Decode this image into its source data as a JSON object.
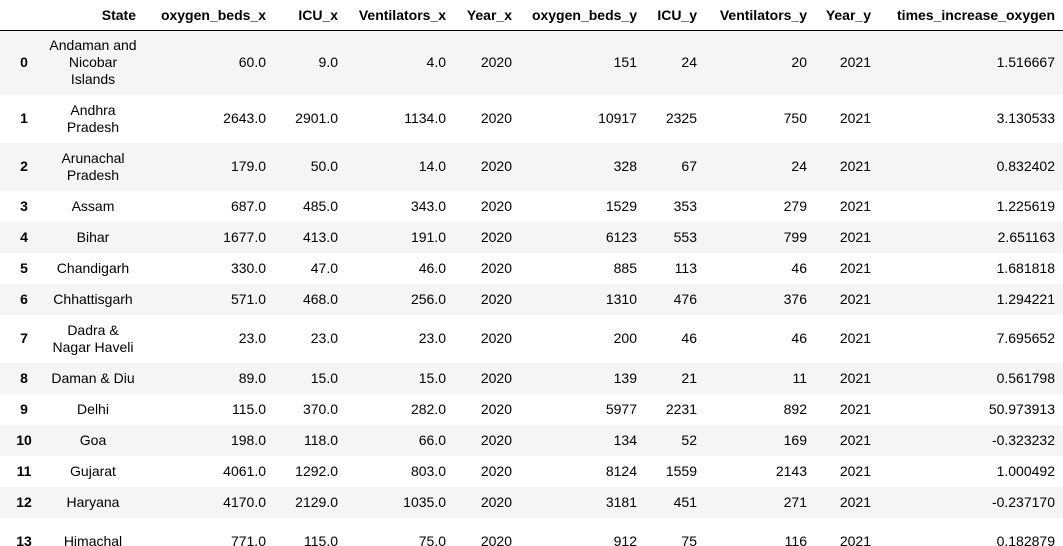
{
  "columns": [
    "",
    "State",
    "oxygen_beds_x",
    "ICU_x",
    "Ventilators_x",
    "Year_x",
    "oxygen_beds_y",
    "ICU_y",
    "Ventilators_y",
    "Year_y",
    "times_increase_oxygen"
  ],
  "rows": [
    [
      "0",
      "Andaman and Nicobar Islands",
      "60.0",
      "9.0",
      "4.0",
      "2020",
      "151",
      "24",
      "20",
      "2021",
      "1.516667"
    ],
    [
      "1",
      "Andhra Pradesh",
      "2643.0",
      "2901.0",
      "1134.0",
      "2020",
      "10917",
      "2325",
      "750",
      "2021",
      "3.130533"
    ],
    [
      "2",
      "Arunachal Pradesh",
      "179.0",
      "50.0",
      "14.0",
      "2020",
      "328",
      "67",
      "24",
      "2021",
      "0.832402"
    ],
    [
      "3",
      "Assam",
      "687.0",
      "485.0",
      "343.0",
      "2020",
      "1529",
      "353",
      "279",
      "2021",
      "1.225619"
    ],
    [
      "4",
      "Bihar",
      "1677.0",
      "413.0",
      "191.0",
      "2020",
      "6123",
      "553",
      "799",
      "2021",
      "2.651163"
    ],
    [
      "5",
      "Chandigarh",
      "330.0",
      "47.0",
      "46.0",
      "2020",
      "885",
      "113",
      "46",
      "2021",
      "1.681818"
    ],
    [
      "6",
      "Chhattisgarh",
      "571.0",
      "468.0",
      "256.0",
      "2020",
      "1310",
      "476",
      "376",
      "2021",
      "1.294221"
    ],
    [
      "7",
      "Dadra & Nagar Haveli",
      "23.0",
      "23.0",
      "23.0",
      "2020",
      "200",
      "46",
      "46",
      "2021",
      "7.695652"
    ],
    [
      "8",
      "Daman & Diu",
      "89.0",
      "15.0",
      "15.0",
      "2020",
      "139",
      "21",
      "11",
      "2021",
      "0.561798"
    ],
    [
      "9",
      "Delhi",
      "115.0",
      "370.0",
      "282.0",
      "2020",
      "5977",
      "2231",
      "892",
      "2021",
      "50.973913"
    ],
    [
      "10",
      "Goa",
      "198.0",
      "118.0",
      "66.0",
      "2020",
      "134",
      "52",
      "169",
      "2021",
      "-0.323232"
    ],
    [
      "11",
      "Gujarat",
      "4061.0",
      "1292.0",
      "803.0",
      "2020",
      "8124",
      "1559",
      "2143",
      "2021",
      "1.000492"
    ],
    [
      "12",
      "Haryana",
      "4170.0",
      "2129.0",
      "1035.0",
      "2020",
      "3181",
      "451",
      "271",
      "2021",
      "-0.237170"
    ],
    [
      "13",
      "Himachal",
      "771.0",
      "115.0",
      "75.0",
      "2020",
      "912",
      "75",
      "116",
      "2021",
      "0.182879"
    ]
  ]
}
